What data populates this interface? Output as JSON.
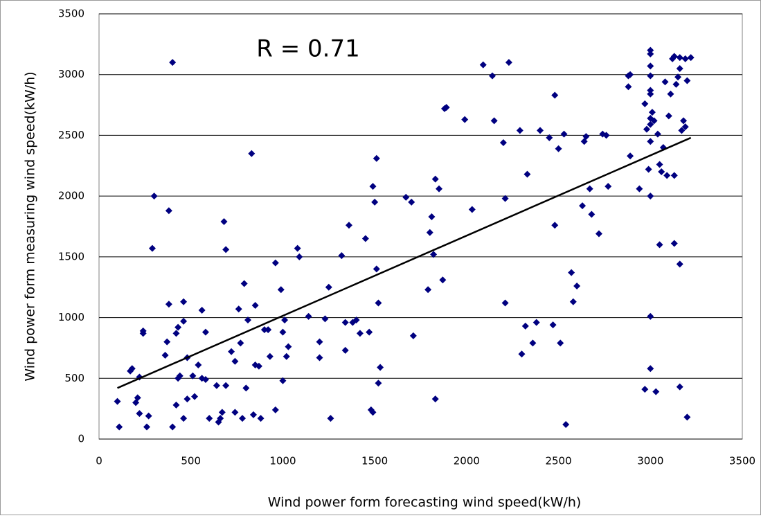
{
  "chart_data": {
    "type": "scatter",
    "annotation": "R = 0.71",
    "x_label": "Wind power form forecasting wind speed(kW/h)",
    "y_label": "Wind power form measuring wind speed(kW/h)",
    "color": "#000080",
    "xlim": [
      0,
      3500
    ],
    "xticks": [
      0,
      500,
      1000,
      1500,
      2000,
      2500,
      3000,
      3500
    ],
    "ylim": [
      0,
      3500
    ],
    "yticks": [
      0,
      500,
      1000,
      1500,
      2000,
      2500,
      3000,
      3500
    ],
    "grid": "y",
    "x": [
      100,
      110,
      170,
      180,
      200,
      210,
      220,
      220,
      240,
      240,
      260,
      270,
      300,
      290,
      380,
      380,
      360,
      370,
      400,
      400,
      420,
      420,
      430,
      430,
      440,
      460,
      460,
      460,
      480,
      480,
      510,
      520,
      540,
      560,
      560,
      580,
      580,
      600,
      640,
      650,
      660,
      670,
      680,
      690,
      690,
      720,
      740,
      740,
      760,
      770,
      780,
      790,
      810,
      800,
      830,
      840,
      850,
      850,
      870,
      880,
      900,
      920,
      930,
      960,
      960,
      990,
      1000,
      1000,
      1010,
      1020,
      1030,
      1080,
      1090,
      1140,
      1200,
      1200,
      1230,
      1250,
      1260,
      1320,
      1340,
      1340,
      1360,
      1380,
      1400,
      1420,
      1450,
      1470,
      1480,
      1490,
      1490,
      1500,
      1510,
      1510,
      1520,
      1520,
      1530,
      1670,
      1700,
      1710,
      1790,
      1800,
      1810,
      1820,
      1830,
      1830,
      1850,
      1870,
      1880,
      1890,
      1990,
      2030,
      2090,
      2140,
      2150,
      2200,
      2210,
      2210,
      2230,
      2290,
      2300,
      2320,
      2330,
      2360,
      2380,
      2400,
      2450,
      2470,
      2480,
      2480,
      2500,
      2510,
      2530,
      2540,
      2570,
      2580,
      2600,
      2630,
      2640,
      2650,
      2670,
      2680,
      2720,
      2740,
      2760,
      2770,
      2880,
      2880,
      2890,
      2890,
      2940,
      2970,
      2970,
      2980,
      2990,
      3000,
      3000,
      3000,
      3000,
      3000,
      3000,
      3000,
      3000,
      3000,
      3000,
      3000,
      3000,
      3010,
      3020,
      3030,
      3040,
      3050,
      3050,
      3060,
      3070,
      3080,
      3090,
      3100,
      3110,
      3120,
      3130,
      3130,
      3130,
      3140,
      3150,
      3160,
      3160,
      3160,
      3160,
      3170,
      3180,
      3190,
      3190,
      3200,
      3200,
      3220
    ],
    "y": [
      310,
      100,
      560,
      580,
      300,
      340,
      210,
      510,
      870,
      890,
      100,
      190,
      2000,
      1570,
      1880,
      1110,
      690,
      800,
      3100,
      100,
      280,
      870,
      920,
      500,
      520,
      1130,
      970,
      170,
      670,
      330,
      520,
      350,
      610,
      1060,
      500,
      490,
      880,
      170,
      440,
      140,
      170,
      220,
      1790,
      1560,
      440,
      720,
      640,
      220,
      1070,
      790,
      170,
      1280,
      980,
      420,
      2350,
      200,
      610,
      1100,
      600,
      170,
      900,
      900,
      680,
      1450,
      240,
      1230,
      880,
      480,
      980,
      680,
      760,
      1570,
      1500,
      1010,
      670,
      800,
      990,
      1250,
      170,
      1510,
      730,
      960,
      1760,
      960,
      980,
      870,
      1650,
      880,
      240,
      220,
      2080,
      1950,
      2310,
      1400,
      1120,
      460,
      590,
      1990,
      1950,
      850,
      1230,
      1700,
      1830,
      1520,
      2140,
      330,
      2060,
      1310,
      2720,
      2730,
      2630,
      1890,
      3080,
      2990,
      2620,
      2440,
      1980,
      1120,
      3100,
      2540,
      700,
      930,
      2180,
      790,
      960,
      2540,
      2480,
      940,
      1760,
      2830,
      2390,
      790,
      2510,
      120,
      1370,
      1130,
      1260,
      1920,
      2450,
      2490,
      2060,
      1850,
      1690,
      2510,
      2500,
      2080,
      2990,
      2900,
      3000,
      2330,
      2060,
      2760,
      410,
      2550,
      2220,
      3200,
      3170,
      3070,
      2990,
      2870,
      2840,
      2640,
      2590,
      2450,
      2000,
      1010,
      580,
      2690,
      2620,
      390,
      2510,
      2260,
      1600,
      2200,
      2400,
      2940,
      2170,
      2660,
      2840,
      3130,
      3150,
      2170,
      1610,
      2920,
      2980,
      3140,
      3050,
      1440,
      430,
      2540,
      2620,
      2570,
      3130,
      2950,
      180,
      3140
    ],
    "trendline": {
      "x": [
        100,
        3220
      ],
      "y": [
        420,
        2480
      ]
    }
  }
}
